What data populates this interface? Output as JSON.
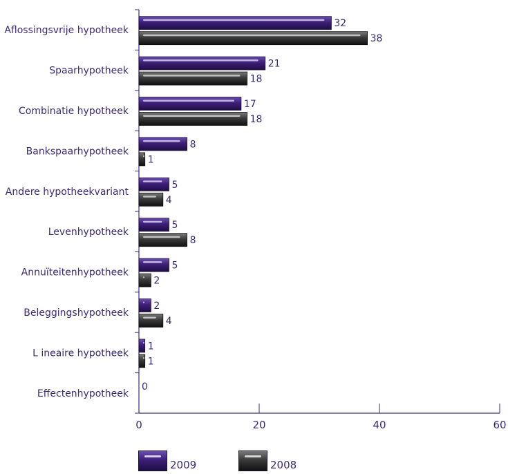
{
  "chart_data": {
    "type": "bar",
    "orientation": "horizontal",
    "categories": [
      "Aflossingsvrije hypotheek",
      "Spaarhypotheek",
      "Combinatie hypotheek",
      "Bankspaarhypotheek",
      "Andere hypotheekvariant",
      "Levenhypotheek",
      "Annuïteitenhypotheek",
      "Beleggingshypotheek",
      "L ineaire hypotheek",
      "Effectenhypotheek"
    ],
    "series": [
      {
        "name": "2009",
        "values": [
          32,
          21,
          17,
          8,
          5,
          5,
          5,
          2,
          1,
          0
        ],
        "color": "#3d1f78"
      },
      {
        "name": "2008",
        "values": [
          38,
          18,
          18,
          1,
          4,
          8,
          2,
          4,
          1,
          null
        ],
        "color": "#2b2b2b"
      }
    ],
    "value_labels": [
      [
        "32",
        "21",
        "17",
        "8",
        "5",
        "5",
        "5",
        "2",
        "1",
        "0"
      ],
      [
        "38",
        "18",
        "18",
        "1",
        "4",
        "8",
        "2",
        "4",
        "1",
        ""
      ]
    ],
    "xlim": [
      0,
      60
    ],
    "x_ticks": [
      "0",
      "20",
      "40",
      "60"
    ],
    "legend_position": "bottom",
    "title": "",
    "xlabel": "",
    "ylabel": ""
  }
}
